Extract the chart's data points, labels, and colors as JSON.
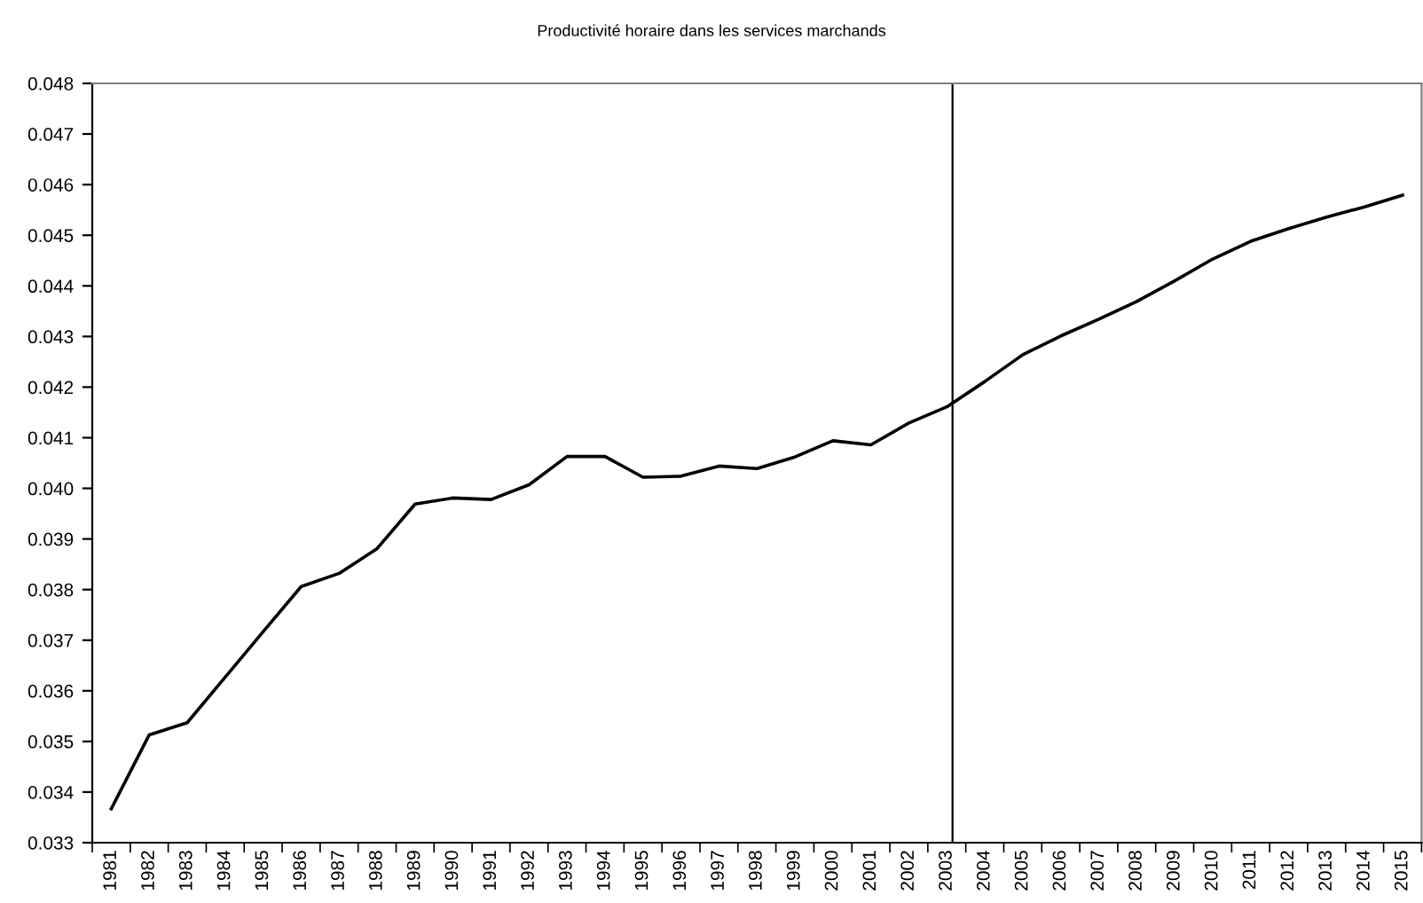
{
  "chart_data": {
    "type": "line",
    "title": "Productivité horaire dans les services marchands",
    "categories": [
      "1981",
      "1982",
      "1983",
      "1984",
      "1985",
      "1986",
      "1987",
      "1988",
      "1989",
      "1990",
      "1991",
      "1992",
      "1993",
      "1994",
      "1995",
      "1996",
      "1997",
      "1998",
      "1999",
      "2000",
      "2001",
      "2002",
      "2003",
      "2004",
      "2005",
      "2006",
      "2007",
      "2008",
      "2009",
      "2010",
      "2011",
      "2012",
      "2013",
      "2014",
      "2015"
    ],
    "series": [
      {
        "color": "#000000",
        "values": [
          0.03367,
          0.03513,
          0.03537,
          0.03627,
          0.03717,
          0.03806,
          0.03832,
          0.03881,
          0.03969,
          0.03981,
          0.03978,
          0.04007,
          0.04063,
          0.04063,
          0.04022,
          0.04024,
          0.04044,
          0.04039,
          0.04062,
          0.04094,
          0.04086,
          0.04129,
          0.04161,
          0.04211,
          0.04264,
          0.04301,
          0.04334,
          0.04369,
          0.0441,
          0.04453,
          0.04488,
          0.04513,
          0.04536,
          0.04556,
          0.04579
        ]
      }
    ],
    "ylim": [
      0.033,
      0.048
    ],
    "yticks": [
      0.033,
      0.034,
      0.035,
      0.036,
      0.037,
      0.038,
      0.039,
      {
        "value": 0.04,
        "label": "0.040"
      },
      0.041,
      0.042,
      0.043,
      0.044,
      0.045,
      0.046,
      0.047,
      0.048
    ],
    "ref_lines": [
      {
        "axis": "x",
        "value": "2003",
        "color": "#000000"
      }
    ],
    "grid": false,
    "legend": false,
    "marker": "none",
    "line_style": "solid"
  }
}
